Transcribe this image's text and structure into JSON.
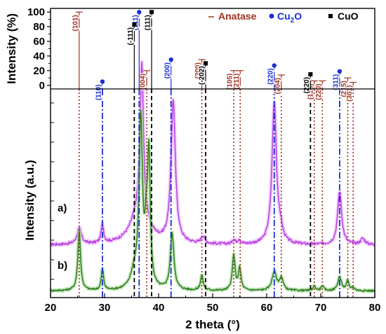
{
  "chart_data": {
    "type": "line",
    "colors": {
      "anatase": "#a0301e",
      "cu2o": "#1a2fd6",
      "cuo": "#000000",
      "curve_a": "#b43ee6",
      "curve_a_halo": "#ecb4f5",
      "curve_b": "#2a7a18",
      "curve_b_halo": "#a8dca0"
    },
    "x_axis": {
      "label": "2 theta (°)",
      "range": [
        20,
        80
      ],
      "ticks": [
        20,
        30,
        40,
        50,
        60,
        70,
        80
      ]
    },
    "top_panel": {
      "ylabel": "Intensity (%)",
      "ylim": [
        -5,
        105
      ],
      "yticks": [
        0,
        20,
        40,
        60,
        80,
        100
      ],
      "legend": [
        {
          "key": "anatase",
          "label": "Anatase",
          "marker": "dash"
        },
        {
          "key": "cu2o",
          "label_main": "Cu",
          "label_sub": "2",
          "label_tail": "O",
          "marker": "circle"
        },
        {
          "key": "cuo",
          "label": "CuO",
          "marker": "square"
        }
      ],
      "reference_peaks": {
        "anatase": [
          {
            "x": 25.3,
            "y": 100,
            "label": "(101)"
          },
          {
            "x": 37.8,
            "y": 20,
            "label": "(004)"
          },
          {
            "x": 48.0,
            "y": 35,
            "label": "(200)"
          },
          {
            "x": 53.9,
            "y": 20,
            "label": "(105)"
          },
          {
            "x": 55.1,
            "y": 20,
            "label": "(211)"
          },
          {
            "x": 62.7,
            "y": 14,
            "label": "(204)"
          },
          {
            "x": 68.8,
            "y": 6,
            "label": "(116)"
          },
          {
            "x": 70.3,
            "y": 6,
            "label": "(220)"
          },
          {
            "x": 75.0,
            "y": 10,
            "label": "(215)"
          },
          {
            "x": 76.0,
            "y": 4,
            "label": "(301)"
          }
        ],
        "cu2o": [
          {
            "x": 29.6,
            "y": 5,
            "label": "(110)"
          },
          {
            "x": 36.4,
            "y": 100,
            "label": "(111)"
          },
          {
            "x": 42.3,
            "y": 35,
            "label": "(200)"
          },
          {
            "x": 61.4,
            "y": 27,
            "label": "(220)"
          },
          {
            "x": 73.5,
            "y": 19,
            "label": "(311)"
          }
        ],
        "cuo": [
          {
            "x": 35.5,
            "y": 83,
            "label": "(-111)"
          },
          {
            "x": 38.7,
            "y": 100,
            "label": "(111)"
          },
          {
            "x": 48.7,
            "y": 30,
            "label": "(-202)"
          },
          {
            "x": 68.1,
            "y": 15,
            "label": "(220)"
          }
        ]
      }
    },
    "bottom_panel": {
      "ylabel": "Intensity (a.u.)",
      "series": [
        {
          "name": "a)",
          "baseline": 0.33,
          "noise": 0.018,
          "peaks": [
            {
              "x": 25.3,
              "h": 0.1,
              "w": 0.5
            },
            {
              "x": 29.6,
              "h": 0.12,
              "w": 0.28
            },
            {
              "x": 36.5,
              "h": 0.23,
              "w": 1.8
            },
            {
              "x": 36.9,
              "h": 0.97,
              "w": 0.35
            },
            {
              "x": 42.7,
              "h": 0.93,
              "w": 0.48
            },
            {
              "x": 48.2,
              "h": 0.05,
              "w": 0.4
            },
            {
              "x": 53.9,
              "h": 0.03,
              "w": 0.3
            },
            {
              "x": 54.9,
              "h": 0.03,
              "w": 0.3
            },
            {
              "x": 61.4,
              "h": 0.93,
              "w": 0.5
            },
            {
              "x": 62.6,
              "h": 0.06,
              "w": 0.4
            },
            {
              "x": 73.5,
              "h": 0.35,
              "w": 0.45
            },
            {
              "x": 77.8,
              "h": 0.04,
              "w": 0.5
            }
          ]
        },
        {
          "name": "b)",
          "baseline": 0.03,
          "noise": 0.012,
          "peaks": [
            {
              "x": 25.3,
              "h": 0.39,
              "w": 0.3
            },
            {
              "x": 29.6,
              "h": 0.14,
              "w": 0.25
            },
            {
              "x": 35.5,
              "h": 0.1,
              "w": 0.8
            },
            {
              "x": 36.7,
              "h": 1.1,
              "w": 0.38
            },
            {
              "x": 37.7,
              "h": 0.28,
              "w": 0.28
            },
            {
              "x": 38.2,
              "h": 0.85,
              "w": 0.3
            },
            {
              "x": 42.5,
              "h": 0.37,
              "w": 0.4
            },
            {
              "x": 48.0,
              "h": 0.1,
              "w": 0.3
            },
            {
              "x": 53.9,
              "h": 0.23,
              "w": 0.3
            },
            {
              "x": 55.0,
              "h": 0.14,
              "w": 0.3
            },
            {
              "x": 61.4,
              "h": 0.12,
              "w": 0.5
            },
            {
              "x": 62.7,
              "h": 0.08,
              "w": 0.4
            },
            {
              "x": 68.8,
              "h": 0.03,
              "w": 0.3
            },
            {
              "x": 70.3,
              "h": 0.03,
              "w": 0.3
            },
            {
              "x": 73.5,
              "h": 0.09,
              "w": 0.4
            },
            {
              "x": 75.0,
              "h": 0.06,
              "w": 0.3
            },
            {
              "x": 76.0,
              "h": 0.02,
              "w": 0.3
            }
          ]
        }
      ]
    }
  }
}
